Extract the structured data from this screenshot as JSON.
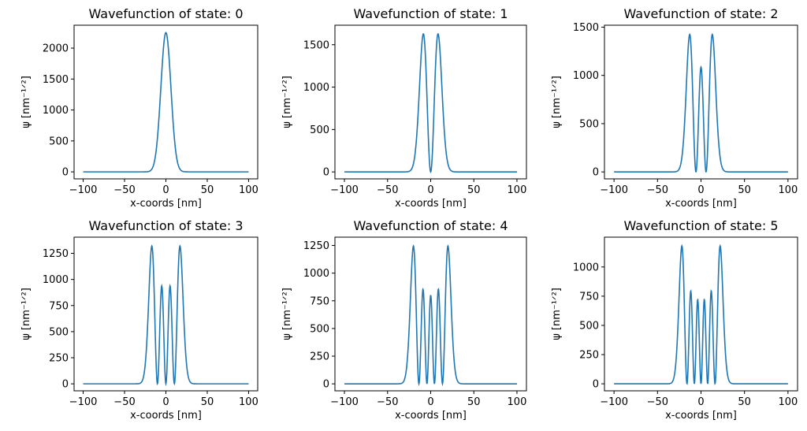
{
  "figure": {
    "line_color": "#1f77b4"
  },
  "chart_data": [
    {
      "type": "line",
      "title": "Wavefunction of state: 0",
      "xlabel": "x-coords [nm]",
      "ylabel": "ψ [nm⁻¹ᐟ²]",
      "state": 0,
      "x_range": [
        -100,
        100
      ],
      "xlim": [
        -111,
        111
      ],
      "ylim": [
        -113,
        2370
      ],
      "xticks": [
        -100,
        -50,
        0,
        50,
        100
      ],
      "xtick_labels": [
        "−100",
        "−50",
        "0",
        "50",
        "100"
      ],
      "yticks": [
        0,
        500,
        1000,
        1500,
        2000
      ],
      "ytick_labels": [
        "0",
        "500",
        "1000",
        "1500",
        "2000"
      ],
      "peaks": [
        {
          "x": 0,
          "y": 2250
        }
      ]
    },
    {
      "type": "line",
      "title": "Wavefunction of state: 1",
      "xlabel": "x-coords [nm]",
      "ylabel": "ψ [nm⁻¹ᐟ²]",
      "state": 1,
      "x_range": [
        -100,
        100
      ],
      "xlim": [
        -111,
        111
      ],
      "ylim": [
        -82,
        1730
      ],
      "xticks": [
        -100,
        -50,
        0,
        50,
        100
      ],
      "xtick_labels": [
        "−100",
        "−50",
        "0",
        "50",
        "100"
      ],
      "yticks": [
        0,
        500,
        1000,
        1500
      ],
      "ytick_labels": [
        "0",
        "500",
        "1000",
        "1500"
      ],
      "peaks": [
        {
          "x": -8.5,
          "y": 1645
        },
        {
          "x": 8.5,
          "y": 1628
        }
      ]
    },
    {
      "type": "line",
      "title": "Wavefunction of state: 2",
      "xlabel": "x-coords [nm]",
      "ylabel": "ψ [nm⁻¹ᐟ²]",
      "state": 2,
      "x_range": [
        -100,
        100
      ],
      "xlim": [
        -111,
        111
      ],
      "ylim": [
        -72,
        1520
      ],
      "xticks": [
        -100,
        -50,
        0,
        50,
        100
      ],
      "xtick_labels": [
        "−100",
        "−50",
        "0",
        "50",
        "100"
      ],
      "yticks": [
        0,
        500,
        1000,
        1500
      ],
      "ytick_labels": [
        "0",
        "500",
        "1000",
        "1500"
      ],
      "peaks": [
        {
          "x": -13,
          "y": 1445
        },
        {
          "x": 0,
          "y": 1080
        },
        {
          "x": 13,
          "y": 1425
        }
      ]
    },
    {
      "type": "line",
      "title": "Wavefunction of state: 3",
      "xlabel": "x-coords [nm]",
      "ylabel": "ψ [nm⁻¹ᐟ²]",
      "state": 3,
      "x_range": [
        -100,
        100
      ],
      "xlim": [
        -111,
        111
      ],
      "ylim": [
        -67,
        1405
      ],
      "xticks": [
        -100,
        -50,
        0,
        50,
        100
      ],
      "xtick_labels": [
        "−100",
        "−50",
        "0",
        "50",
        "100"
      ],
      "yticks": [
        0,
        250,
        500,
        750,
        1000,
        1250
      ],
      "ytick_labels": [
        "0",
        "250",
        "500",
        "750",
        "1000",
        "1250"
      ],
      "peaks": [
        {
          "x": -17,
          "y": 1338
        },
        {
          "x": -5,
          "y": 922
        },
        {
          "x": 5,
          "y": 912
        },
        {
          "x": 17,
          "y": 1320
        }
      ]
    },
    {
      "type": "line",
      "title": "Wavefunction of state: 4",
      "xlabel": "x-coords [nm]",
      "ylabel": "ψ [nm⁻¹ᐟ²]",
      "state": 4,
      "x_range": [
        -100,
        100
      ],
      "xlim": [
        -111,
        111
      ],
      "ylim": [
        -63,
        1325
      ],
      "xticks": [
        -100,
        -50,
        0,
        50,
        100
      ],
      "xtick_labels": [
        "−100",
        "−50",
        "0",
        "50",
        "100"
      ],
      "yticks": [
        0,
        250,
        500,
        750,
        1000,
        1250
      ],
      "ytick_labels": [
        "0",
        "250",
        "500",
        "750",
        "1000",
        "1250"
      ],
      "peaks": [
        {
          "x": -20,
          "y": 1262
        },
        {
          "x": -9,
          "y": 840
        },
        {
          "x": 0,
          "y": 770
        },
        {
          "x": 9,
          "y": 828
        },
        {
          "x": 20,
          "y": 1245
        }
      ]
    },
    {
      "type": "line",
      "title": "Wavefunction of state: 5",
      "xlabel": "x-coords [nm]",
      "ylabel": "ψ [nm⁻¹ᐟ²]",
      "state": 5,
      "x_range": [
        -100,
        100
      ],
      "xlim": [
        -111,
        111
      ],
      "ylim": [
        -60,
        1255
      ],
      "xticks": [
        -100,
        -50,
        0,
        50,
        100
      ],
      "xtick_labels": [
        "−100",
        "−50",
        "0",
        "50",
        "100"
      ],
      "yticks": [
        0,
        250,
        500,
        750,
        1000
      ],
      "ytick_labels": [
        "0",
        "250",
        "500",
        "750",
        "1000"
      ],
      "peaks": [
        {
          "x": -22,
          "y": 1195
        },
        {
          "x": -12.5,
          "y": 778
        },
        {
          "x": -4.5,
          "y": 690
        },
        {
          "x": 4.5,
          "y": 690
        },
        {
          "x": 12.5,
          "y": 768
        },
        {
          "x": 22,
          "y": 1180
        }
      ]
    }
  ]
}
